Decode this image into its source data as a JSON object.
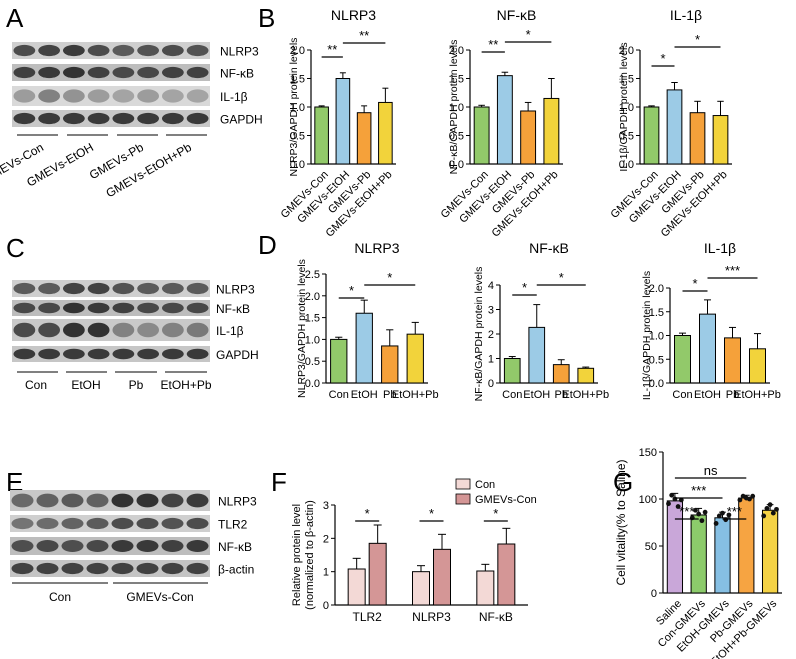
{
  "colors": {
    "green": "#92c96a",
    "blue": "#9ccbe6",
    "orange": "#f5a13a",
    "yellow": "#f2d33b",
    "con_pink": "#f3d9d6",
    "gmev_pink": "#d49696",
    "purple": "#c9a7d9",
    "g_green": "#8ccb6b",
    "g_blue": "#86bfe3",
    "g_orange": "#f6a442",
    "g_yellow": "#f4d245",
    "band": "#2a2a2a"
  },
  "panels": {
    "A": {
      "label": "A",
      "bands": [
        "NLRP3",
        "NF-κB",
        "IL-1β",
        "GAPDH"
      ],
      "lanes": [
        "GMEVs-Con",
        "GMEVs-EtOH",
        "GMEVs-Pb",
        "GMEVs-EtOH+Pb"
      ]
    },
    "C": {
      "label": "C",
      "bands": [
        "NLRP3",
        "NF-κB",
        "IL-1β",
        "GAPDH"
      ],
      "lanes": [
        "Con",
        "EtOH",
        "Pb",
        "EtOH+Pb"
      ]
    },
    "E": {
      "label": "E",
      "bands": [
        "NLRP3",
        "TLR2",
        "NF-κB",
        "β-actin"
      ],
      "lanes": [
        "Con",
        "GMEVs-Con"
      ]
    },
    "B": {
      "label": "B"
    },
    "D": {
      "label": "D"
    },
    "F": {
      "label": "F"
    },
    "G": {
      "label": "G"
    }
  },
  "chart_data": [
    {
      "id": "B1",
      "type": "bar",
      "title": "NLRP3",
      "ylabel": "NLRP3/GAPDH protein levels",
      "ylim": [
        0,
        2.0
      ],
      "yticks": [
        0.0,
        0.5,
        1.0,
        1.5,
        2.0
      ],
      "tick_labels": [
        "0.0",
        "0.5",
        "1.0",
        "1.5",
        "2.0"
      ],
      "categories": [
        "GMEVs-Con",
        "GMEVs-EtOH",
        "GMEVs-Pb",
        "GMEVs-EtOH+Pb"
      ],
      "values": [
        1.0,
        1.5,
        0.9,
        1.08
      ],
      "errors": [
        0.02,
        0.1,
        0.12,
        0.25
      ],
      "significance": [
        {
          "from": 0,
          "to": 1,
          "label": "**"
        },
        {
          "from": 1,
          "to": 3,
          "label": "**"
        }
      ]
    },
    {
      "id": "B2",
      "type": "bar",
      "title": "NF-κB",
      "ylabel": "NF-κB/GAPDH protein levels",
      "ylim": [
        0,
        2.0
      ],
      "yticks": [
        0.0,
        0.5,
        1.0,
        1.5,
        2.0
      ],
      "tick_labels": [
        "0.0",
        "0.5",
        "1.0",
        "1.5",
        "2.0"
      ],
      "categories": [
        "GMEVs-Con",
        "GMEVs-EtOH",
        "GMEVs-Pb",
        "GMEVs-EtOH+Pb"
      ],
      "values": [
        1.0,
        1.55,
        0.93,
        1.15
      ],
      "errors": [
        0.03,
        0.06,
        0.15,
        0.35
      ],
      "significance": [
        {
          "from": 0,
          "to": 1,
          "label": "**"
        },
        {
          "from": 1,
          "to": 3,
          "label": "*"
        }
      ]
    },
    {
      "id": "B3",
      "type": "bar",
      "title": "IL-1β",
      "ylabel": "IL-1β/GAPDH protein levels",
      "ylim": [
        0,
        2.0
      ],
      "yticks": [
        0.0,
        0.5,
        1.0,
        1.5,
        2.0
      ],
      "tick_labels": [
        "0.0",
        "0.5",
        "1.0",
        "1.5",
        "2.0"
      ],
      "categories": [
        "GMEVs-Con",
        "GMEVs-EtOH",
        "GMEVs-Pb",
        "GMEVs-EtOH+Pb"
      ],
      "values": [
        1.0,
        1.3,
        0.9,
        0.85
      ],
      "errors": [
        0.02,
        0.13,
        0.2,
        0.25
      ],
      "significance": [
        {
          "from": 0,
          "to": 1,
          "label": "*"
        },
        {
          "from": 1,
          "to": 3,
          "label": "*"
        }
      ]
    },
    {
      "id": "D1",
      "type": "bar",
      "title": "NLRP3",
      "ylabel": "NLRP3/GAPDH protein levels",
      "ylim": [
        0,
        2.5
      ],
      "yticks": [
        0.0,
        0.5,
        1.0,
        1.5,
        2.0,
        2.5
      ],
      "tick_labels": [
        "0.0",
        "0.5",
        "1.0",
        "1.5",
        "2.0",
        "2.5"
      ],
      "categories": [
        "Con",
        "EtOH",
        "Pb",
        "EtOH+Pb"
      ],
      "values": [
        1.0,
        1.6,
        0.85,
        1.12
      ],
      "errors": [
        0.05,
        0.3,
        0.37,
        0.27
      ],
      "significance": [
        {
          "from": 0,
          "to": 1,
          "label": "*"
        },
        {
          "from": 1,
          "to": 3,
          "label": "*"
        }
      ]
    },
    {
      "id": "D2",
      "type": "bar",
      "title": "NF-κB",
      "ylabel": "NF-κB/GAPDH protein levels",
      "ylim": [
        0,
        4
      ],
      "yticks": [
        0,
        1,
        2,
        3,
        4
      ],
      "tick_labels": [
        "0",
        "1",
        "2",
        "3",
        "4"
      ],
      "categories": [
        "Con",
        "EtOH",
        "Pb",
        "EtOH+Pb"
      ],
      "values": [
        1.0,
        2.27,
        0.75,
        0.6
      ],
      "errors": [
        0.08,
        0.93,
        0.2,
        0.05
      ],
      "significance": [
        {
          "from": 0,
          "to": 1,
          "label": "*"
        },
        {
          "from": 1,
          "to": 3,
          "label": "*"
        }
      ]
    },
    {
      "id": "D3",
      "type": "bar",
      "title": "IL-1β",
      "ylabel": "IL-1β/GAPDH protein levels",
      "ylim": [
        0,
        2.0
      ],
      "yticks": [
        0.0,
        0.5,
        1.0,
        1.5,
        2.0
      ],
      "tick_labels": [
        "0.0",
        "0.5",
        "1.0",
        "1.5",
        "2.0"
      ],
      "categories": [
        "Con",
        "EtOH",
        "Pb",
        "EtOH+Pb"
      ],
      "values": [
        1.0,
        1.45,
        0.95,
        0.72
      ],
      "errors": [
        0.05,
        0.3,
        0.22,
        0.32
      ],
      "significance": [
        {
          "from": 0,
          "to": 1,
          "label": "*"
        },
        {
          "from": 1,
          "to": 3,
          "label": "***"
        }
      ]
    },
    {
      "id": "F",
      "type": "bar",
      "ylabel": "Relative protein level",
      "ylabel2": "(normalized to β-actin)",
      "ylim": [
        0,
        3
      ],
      "yticks": [
        0,
        1,
        2,
        3
      ],
      "tick_labels": [
        "0",
        "1",
        "2",
        "3"
      ],
      "categories": [
        "TLR2",
        "NLRP3",
        "NF-κB"
      ],
      "series": [
        {
          "name": "Con",
          "values": [
            1.08,
            1.0,
            1.02
          ],
          "errors": [
            0.32,
            0.18,
            0.2
          ]
        },
        {
          "name": "GMEVs-Con",
          "values": [
            1.85,
            1.67,
            1.83
          ],
          "errors": [
            0.55,
            0.45,
            0.47
          ]
        }
      ],
      "significance": [
        "*",
        "*",
        "*"
      ]
    },
    {
      "id": "G",
      "type": "bar",
      "ylabel": "Cell vitality(% to Saline)",
      "ylim": [
        0,
        150
      ],
      "yticks": [
        0,
        50,
        100,
        150
      ],
      "tick_labels": [
        "0",
        "50",
        "100",
        "150"
      ],
      "categories": [
        "Saline",
        "Con-GMEVs",
        "EtOH-GMEVs",
        "Pb-GMEVs",
        "EtOH+Pb-GMEVs"
      ],
      "values": [
        98,
        83,
        80,
        101,
        88
      ],
      "errors": [
        8,
        7,
        6,
        3,
        6
      ],
      "points": [
        [
          95,
          104,
          100,
          92,
          99
        ],
        [
          80,
          88,
          84,
          77,
          86
        ],
        [
          74,
          82,
          85,
          78,
          83
        ],
        [
          99,
          103,
          101,
          100,
          103
        ],
        [
          82,
          90,
          94,
          85,
          89
        ]
      ],
      "significance": [
        {
          "from": 0,
          "to": 1,
          "label": "***"
        },
        {
          "from": 0,
          "to": 2,
          "label": "***"
        },
        {
          "from": 0,
          "to": 3,
          "label": "ns"
        },
        {
          "from": 2,
          "to": 3,
          "label": "***"
        }
      ]
    }
  ]
}
